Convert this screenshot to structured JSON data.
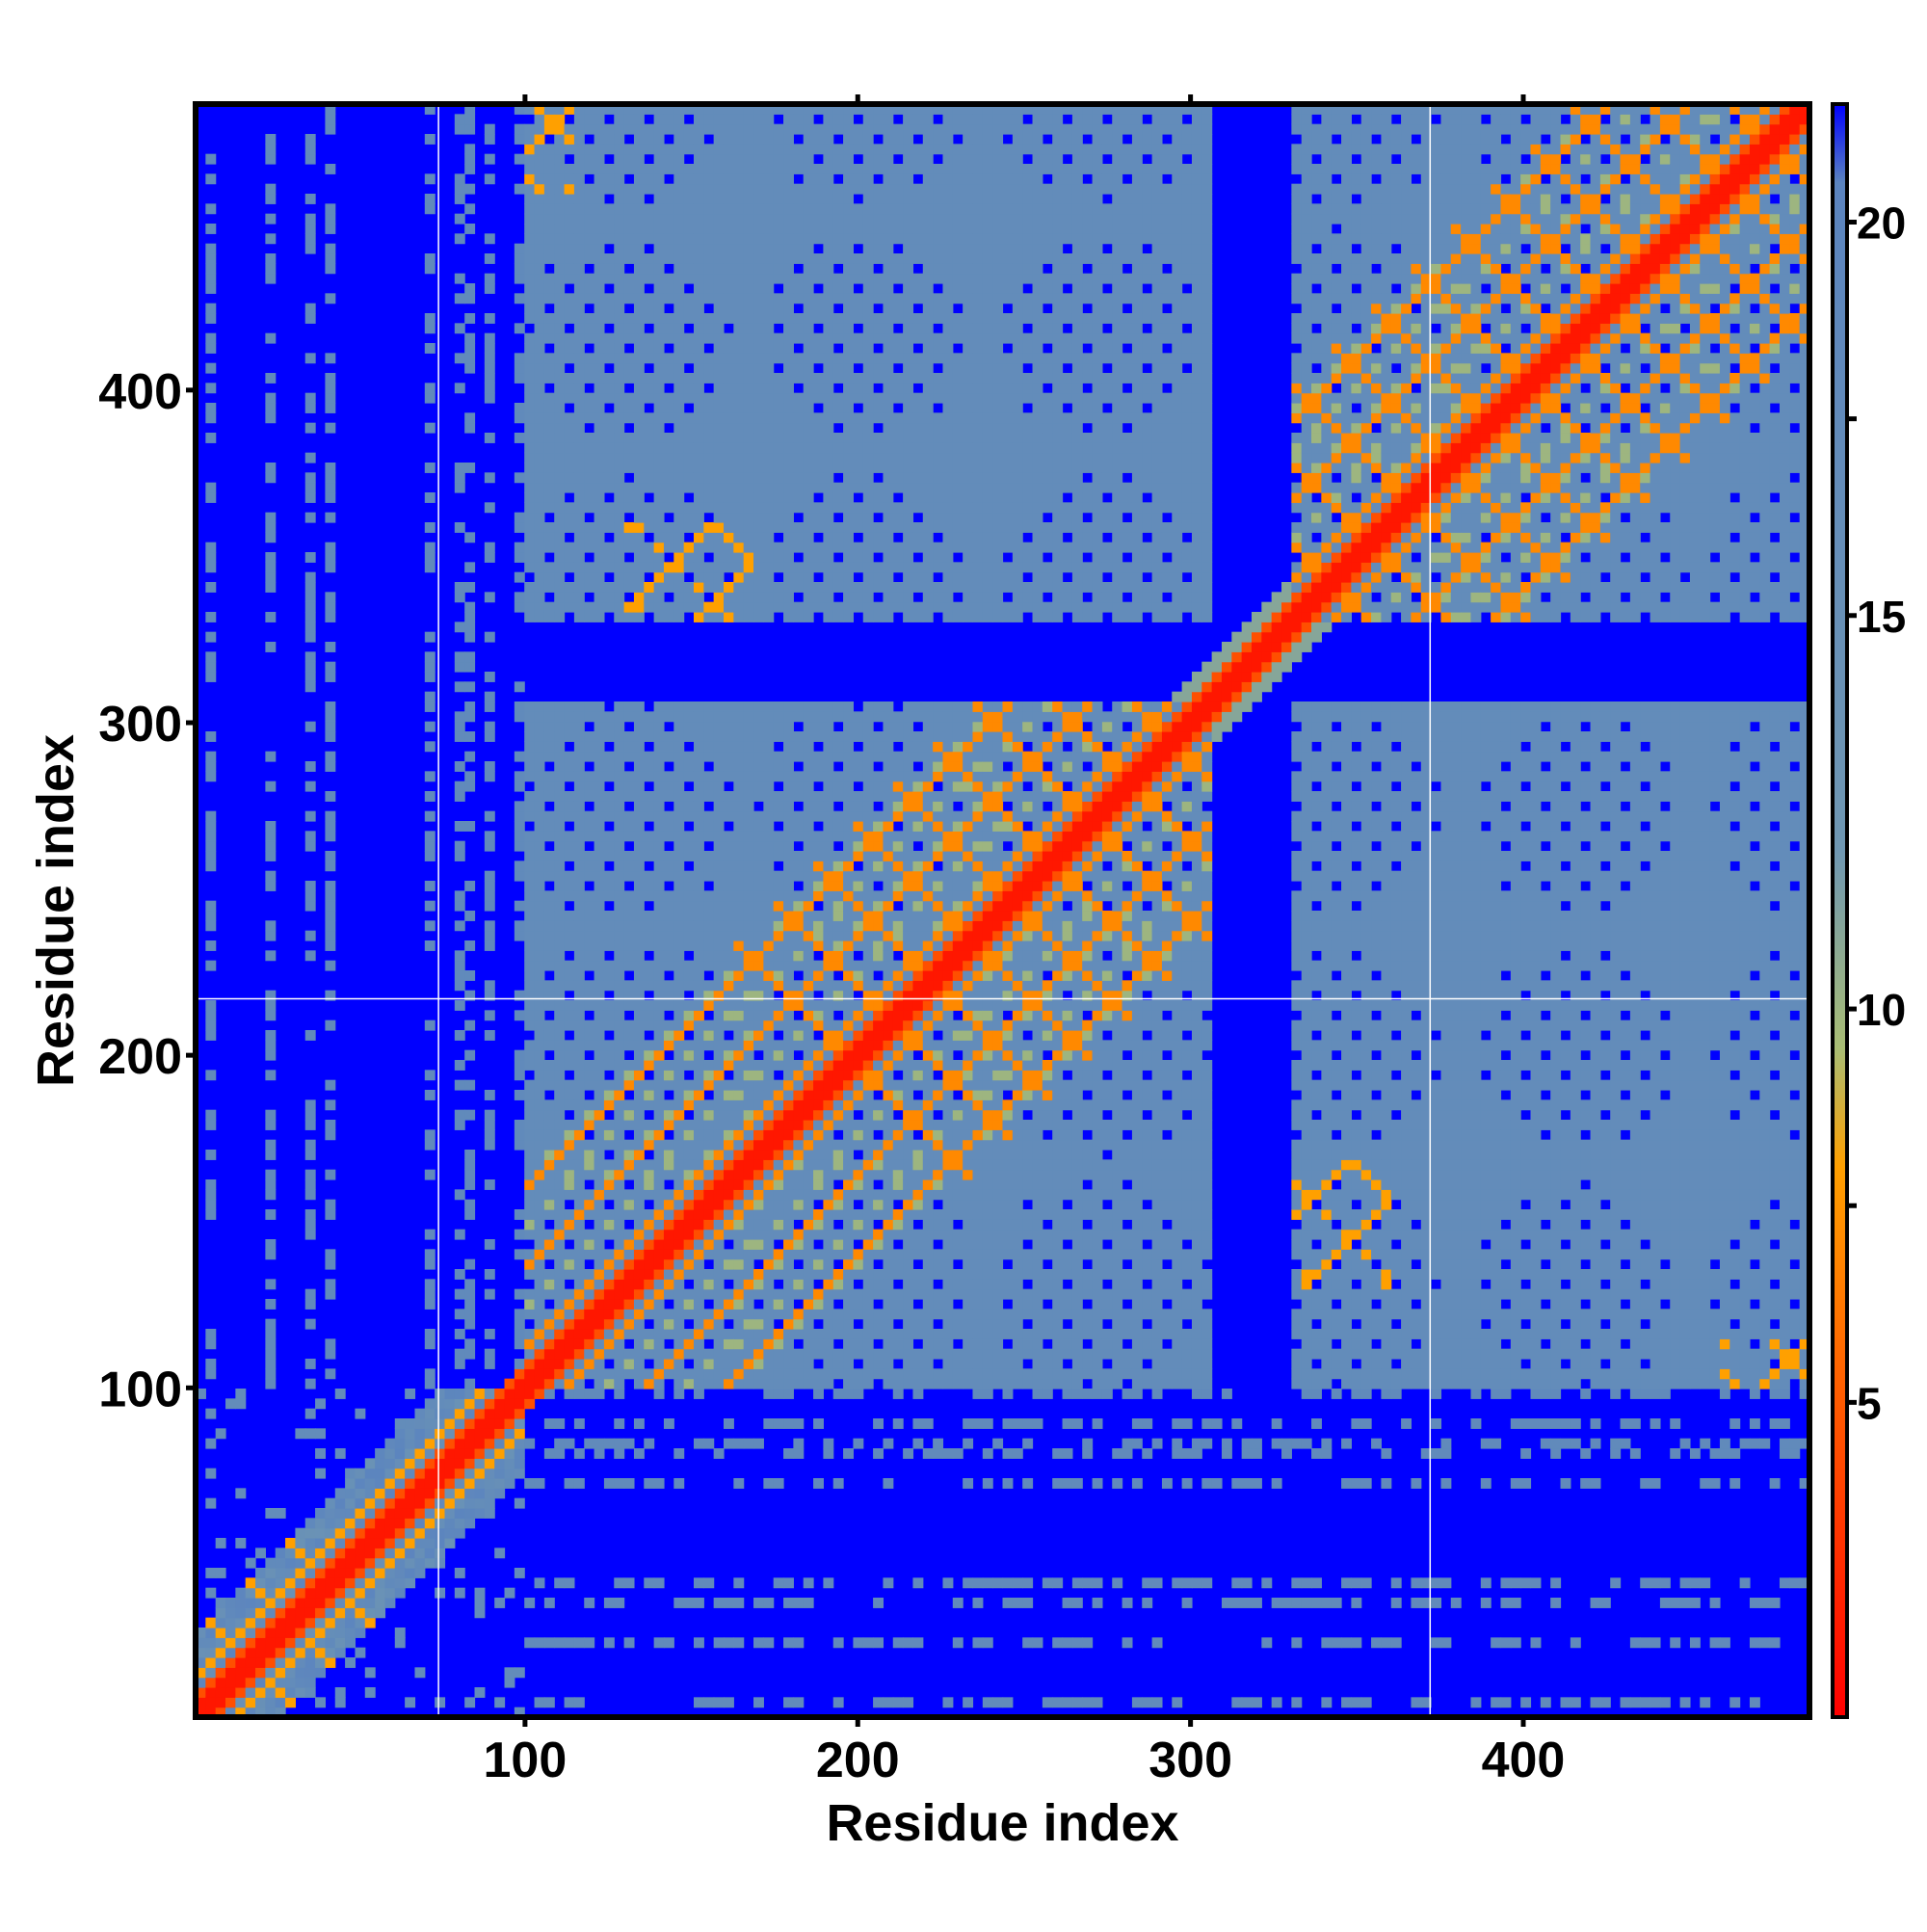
{
  "chart_data": {
    "type": "heatmap",
    "title": "",
    "xlabel": "Residue index",
    "ylabel": "Residue index",
    "xlim": [
      1,
      486
    ],
    "ylim": [
      1,
      486
    ],
    "x_ticks": [
      100,
      200,
      300,
      400
    ],
    "y_ticks": [
      100,
      200,
      300,
      400
    ],
    "colorbar": {
      "range": [
        1,
        21.5
      ],
      "ticks": [
        5,
        10,
        15,
        20
      ],
      "stops": [
        {
          "value": 1,
          "color": "#ff0000"
        },
        {
          "value": 5,
          "color": "#ff5a00"
        },
        {
          "value": 8,
          "color": "#ffa000"
        },
        {
          "value": 9.5,
          "color": "#a9bd74"
        },
        {
          "value": 12,
          "color": "#6f97b2"
        },
        {
          "value": 20.5,
          "color": "#5b84bf"
        },
        {
          "value": 21.5,
          "color": "#0000ff"
        }
      ]
    },
    "colors": {
      "far": "#0000ff",
      "mid": "#5b84bf",
      "near": "#b3c070",
      "contact": "#ff7a00",
      "diagonal": "#ff0000",
      "grid": "#ffffff"
    },
    "domains": [
      {
        "start": 1,
        "end": 100,
        "interior": "sparse"
      },
      {
        "start": 100,
        "end": 305,
        "interior": "dense"
      },
      {
        "start": 305,
        "end": 330,
        "interior": "linker"
      },
      {
        "start": 330,
        "end": 486,
        "interior": "dense"
      }
    ],
    "reference_lines": {
      "x": [
        74,
        372
      ],
      "y": [
        217
      ]
    }
  }
}
